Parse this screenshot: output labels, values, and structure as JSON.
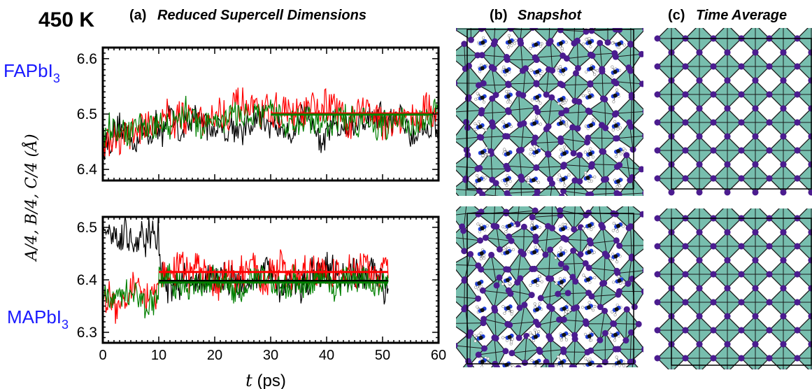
{
  "header": {
    "temperature": "450 K",
    "panel_a": "(a)",
    "panel_a_title": "Reduced Supercell Dimensions",
    "panel_b": "(b)",
    "panel_b_title": "Snapshot",
    "panel_c": "(c)",
    "panel_c_title": "Time Average"
  },
  "materials": {
    "top": {
      "base": "FAPbI",
      "sub": "3"
    },
    "bottom": {
      "base": "MAPbI",
      "sub": "3"
    }
  },
  "colors": {
    "series_A": "#000000",
    "series_B": "#ff0000",
    "series_C": "#008000",
    "material_label": "#1a1aff",
    "octahedron": "#5fb3a0",
    "iodine": "#4b1c8f",
    "nitrogen": "#1f3fd6",
    "carbon": "#111111"
  },
  "axes": {
    "ylabel": "A/4, B/4, C/4 (Å)",
    "xlabel_var": "t",
    "xlabel_unit": " (ps)"
  },
  "chart_data": [
    {
      "type": "line",
      "name": "FAPbI3",
      "ylim": [
        6.38,
        6.62
      ],
      "xlim": [
        0,
        60
      ],
      "yticks": [
        "6.4",
        "6.5",
        "6.6"
      ],
      "xticks": [],
      "x_range_data": [
        0,
        60
      ],
      "series_levels": [
        6.48,
        6.5,
        6.49
      ],
      "series_noise": [
        0.03,
        0.035,
        0.03
      ],
      "averages": {
        "x_start": 30,
        "x_end": 59,
        "values": [
          6.5,
          6.501,
          6.499
        ]
      }
    },
    {
      "type": "line",
      "name": "MAPbI3",
      "ylim": [
        6.28,
        6.52
      ],
      "xlim": [
        0,
        60
      ],
      "yticks": [
        "6.3",
        "6.4",
        "6.5"
      ],
      "xticks": [
        "0",
        "10",
        "20",
        "30",
        "40",
        "50",
        "60"
      ],
      "x_range_data": [
        0,
        51
      ],
      "series_levels": [
        6.4,
        6.41,
        6.395
      ],
      "series_noise": [
        0.035,
        0.035,
        0.03
      ],
      "averages": {
        "x_start": 10,
        "x_end": 51,
        "values": [
          6.398,
          6.415,
          6.395
        ]
      }
    }
  ]
}
